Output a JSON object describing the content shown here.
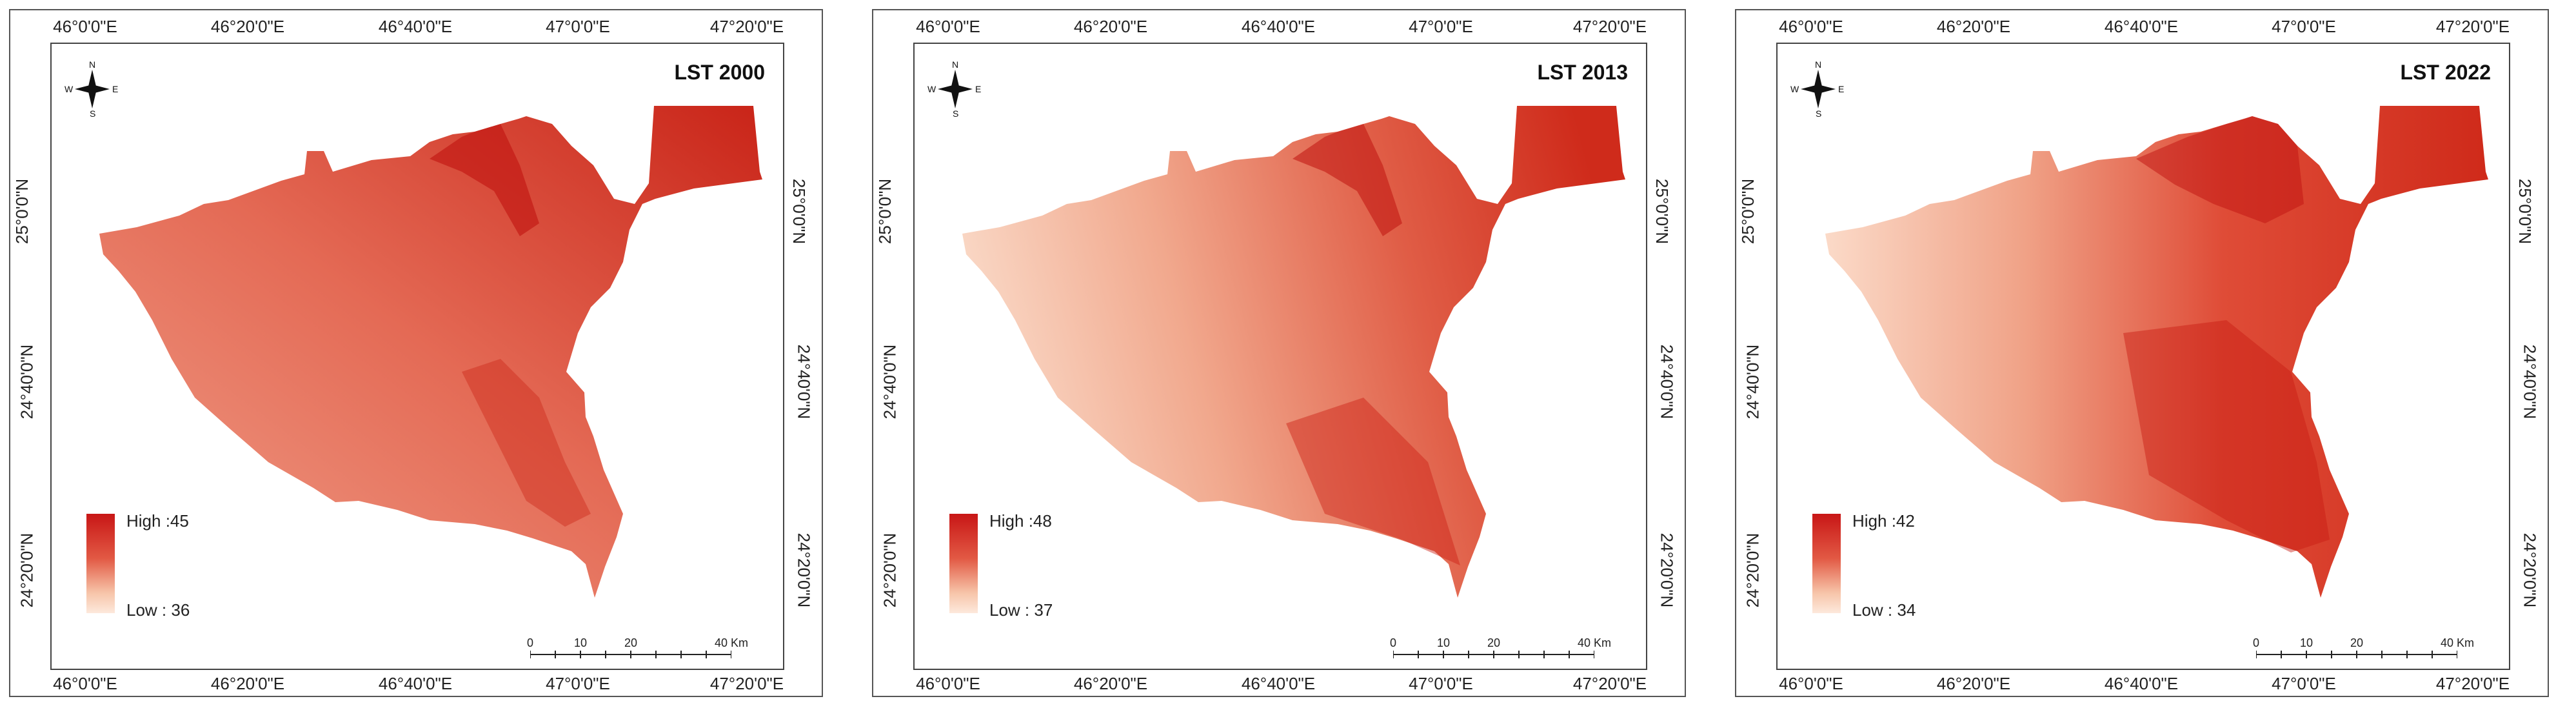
{
  "panels": [
    {
      "title": "LST 2000",
      "legend": {
        "high": "High :45",
        "low": "Low : 36"
      }
    },
    {
      "title": "LST 2013",
      "legend": {
        "high": "High :48",
        "low": "Low : 37"
      }
    },
    {
      "title": "LST 2022",
      "legend": {
        "high": "High :42",
        "low": "Low : 34"
      }
    }
  ],
  "lon_ticks": [
    "46°0'0\"E",
    "46°20'0\"E",
    "46°40'0\"E",
    "47°0'0\"E",
    "47°20'0\"E"
  ],
  "lat_ticks": [
    "25°0'0\"N",
    "24°40'0\"N",
    "24°20'0\"N"
  ],
  "north_arrow": {
    "n": "N",
    "s": "S",
    "e": "E",
    "w": "W",
    "icon": "north-arrow-icon"
  },
  "scale_bar": {
    "labels": [
      "0",
      "10",
      "20",
      "40 Km"
    ]
  },
  "colors": {
    "high": "#c81616",
    "mid": "#e25944",
    "low": "#fde9dc"
  }
}
